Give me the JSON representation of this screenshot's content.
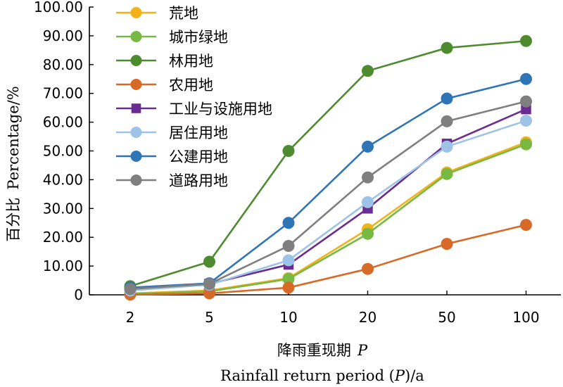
{
  "chart_data": {
    "type": "line",
    "title": "",
    "xlabel_cn": "降雨重现期",
    "xlabel_cn_var": "P",
    "xlabel_en_a": "Rainfall return period (",
    "xlabel_en_var": "P",
    "xlabel_en_b": ")/a",
    "ylabel_cn": "百分比",
    "ylabel_en": "Percentage/%",
    "x_type": "category",
    "categories": [
      "2",
      "5",
      "10",
      "20",
      "50",
      "100"
    ],
    "ylim": [
      0,
      100
    ],
    "yticks": [
      0,
      10,
      20,
      30,
      40,
      50,
      60,
      70,
      80,
      90,
      100
    ],
    "ytick_labels": [
      "0",
      "10.00",
      "20.00",
      "30.00",
      "40.00",
      "50.00",
      "60.00",
      "70.00",
      "80.00",
      "90.00",
      "100.00"
    ],
    "grid": false,
    "legend_position": "top-left",
    "series": [
      {
        "name": "荒地",
        "color": "#F2B21A",
        "marker": "circle",
        "values": [
          0.5,
          1.5,
          5.8,
          22.8,
          42.5,
          53.0
        ]
      },
      {
        "name": "城市绿地",
        "color": "#77B943",
        "marker": "circle",
        "values": [
          0.3,
          1.2,
          5.5,
          21.2,
          42.0,
          52.3
        ]
      },
      {
        "name": "林用地",
        "color": "#4E8B2F",
        "marker": "circle",
        "values": [
          3.0,
          11.5,
          50.0,
          77.8,
          85.8,
          88.2
        ]
      },
      {
        "name": "农用地",
        "color": "#D86A27",
        "marker": "circle",
        "values": [
          0.1,
          0.5,
          2.5,
          9.0,
          17.7,
          24.3
        ]
      },
      {
        "name": "工业与设施用地",
        "color": "#6A2C91",
        "marker": "square",
        "values": [
          1.8,
          3.8,
          10.5,
          30.0,
          52.5,
          64.5
        ]
      },
      {
        "name": "居住用地",
        "color": "#9DC3E6",
        "marker": "circle",
        "values": [
          1.5,
          3.5,
          12.0,
          32.2,
          51.5,
          60.5
        ]
      },
      {
        "name": "公建用地",
        "color": "#2E75B6",
        "marker": "circle",
        "values": [
          2.5,
          4.0,
          25.0,
          51.5,
          68.2,
          75.0
        ]
      },
      {
        "name": "道路用地",
        "color": "#7F7F7F",
        "marker": "circle",
        "values": [
          2.0,
          3.8,
          17.0,
          40.8,
          60.3,
          67.2
        ]
      }
    ]
  }
}
